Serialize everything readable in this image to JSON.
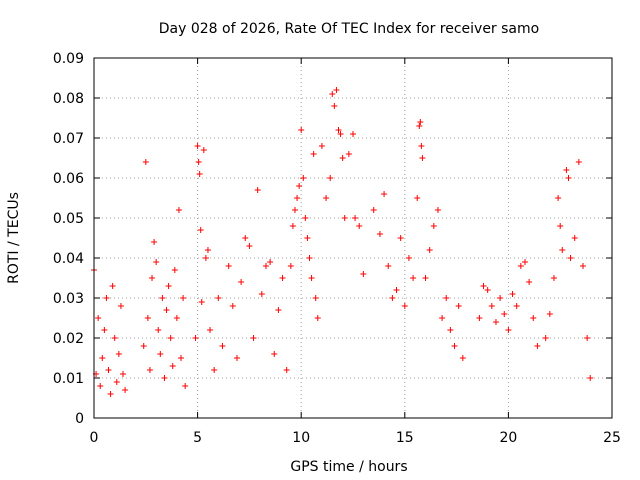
{
  "chart_data": {
    "type": "scatter",
    "title": "Day 028 of 2026, Rate Of TEC Index for receiver samo",
    "xlabel": "GPS time / hours",
    "ylabel": "ROTI / TECUs",
    "xlim": [
      0,
      25
    ],
    "ylim": [
      0,
      0.09
    ],
    "x_ticks": [
      0,
      5,
      10,
      15,
      20,
      25
    ],
    "x_tick_labels": [
      "0",
      "5",
      "10",
      "15",
      "20",
      "25"
    ],
    "y_ticks": [
      0,
      0.01,
      0.02,
      0.03,
      0.04,
      0.05,
      0.06,
      0.07,
      0.08,
      0.09
    ],
    "y_tick_labels": [
      "0",
      "0.01",
      "0.02",
      "0.03",
      "0.04",
      "0.05",
      "0.06",
      "0.07",
      "0.08",
      "0.09"
    ],
    "grid": true,
    "marker": "plus",
    "color": "#ff0000",
    "series": [
      {
        "values": [
          [
            0.0,
            0.037
          ],
          [
            0.1,
            0.011
          ],
          [
            0.2,
            0.025
          ],
          [
            0.3,
            0.008
          ],
          [
            0.4,
            0.015
          ],
          [
            0.5,
            0.022
          ],
          [
            0.6,
            0.03
          ],
          [
            0.7,
            0.012
          ],
          [
            0.8,
            0.006
          ],
          [
            0.9,
            0.033
          ],
          [
            1.0,
            0.02
          ],
          [
            1.1,
            0.009
          ],
          [
            1.2,
            0.016
          ],
          [
            1.3,
            0.028
          ],
          [
            1.4,
            0.011
          ],
          [
            1.5,
            0.007
          ],
          [
            2.4,
            0.018
          ],
          [
            2.5,
            0.064
          ],
          [
            2.6,
            0.025
          ],
          [
            2.7,
            0.012
          ],
          [
            2.8,
            0.035
          ],
          [
            2.9,
            0.044
          ],
          [
            3.0,
            0.039
          ],
          [
            3.1,
            0.022
          ],
          [
            3.2,
            0.016
          ],
          [
            3.3,
            0.03
          ],
          [
            3.4,
            0.01
          ],
          [
            3.5,
            0.027
          ],
          [
            3.6,
            0.033
          ],
          [
            3.7,
            0.02
          ],
          [
            3.8,
            0.013
          ],
          [
            3.9,
            0.037
          ],
          [
            4.0,
            0.025
          ],
          [
            4.1,
            0.052
          ],
          [
            4.2,
            0.015
          ],
          [
            4.3,
            0.03
          ],
          [
            4.4,
            0.008
          ],
          [
            4.9,
            0.02
          ],
          [
            5.0,
            0.068
          ],
          [
            5.05,
            0.064
          ],
          [
            5.1,
            0.061
          ],
          [
            5.15,
            0.047
          ],
          [
            5.2,
            0.029
          ],
          [
            5.3,
            0.067
          ],
          [
            5.4,
            0.04
          ],
          [
            5.5,
            0.042
          ],
          [
            5.6,
            0.022
          ],
          [
            5.8,
            0.012
          ],
          [
            6.0,
            0.03
          ],
          [
            6.2,
            0.018
          ],
          [
            6.5,
            0.038
          ],
          [
            6.7,
            0.028
          ],
          [
            6.9,
            0.015
          ],
          [
            7.1,
            0.034
          ],
          [
            7.3,
            0.045
          ],
          [
            7.5,
            0.043
          ],
          [
            7.7,
            0.02
          ],
          [
            7.9,
            0.057
          ],
          [
            8.1,
            0.031
          ],
          [
            8.3,
            0.038
          ],
          [
            8.5,
            0.039
          ],
          [
            8.7,
            0.016
          ],
          [
            8.9,
            0.027
          ],
          [
            9.1,
            0.035
          ],
          [
            9.3,
            0.012
          ],
          [
            9.5,
            0.038
          ],
          [
            9.6,
            0.048
          ],
          [
            9.7,
            0.052
          ],
          [
            9.8,
            0.055
          ],
          [
            9.9,
            0.058
          ],
          [
            10.0,
            0.072
          ],
          [
            10.1,
            0.06
          ],
          [
            10.2,
            0.05
          ],
          [
            10.3,
            0.045
          ],
          [
            10.4,
            0.04
          ],
          [
            10.5,
            0.035
          ],
          [
            10.6,
            0.066
          ],
          [
            10.7,
            0.03
          ],
          [
            10.8,
            0.025
          ],
          [
            11.0,
            0.068
          ],
          [
            11.2,
            0.055
          ],
          [
            11.4,
            0.06
          ],
          [
            11.5,
            0.081
          ],
          [
            11.6,
            0.078
          ],
          [
            11.7,
            0.082
          ],
          [
            11.8,
            0.072
          ],
          [
            11.9,
            0.071
          ],
          [
            12.0,
            0.065
          ],
          [
            12.1,
            0.05
          ],
          [
            12.3,
            0.066
          ],
          [
            12.5,
            0.071
          ],
          [
            12.6,
            0.05
          ],
          [
            12.8,
            0.048
          ],
          [
            13.0,
            0.036
          ],
          [
            13.5,
            0.052
          ],
          [
            13.8,
            0.046
          ],
          [
            14.0,
            0.056
          ],
          [
            14.2,
            0.038
          ],
          [
            14.4,
            0.03
          ],
          [
            14.6,
            0.032
          ],
          [
            14.8,
            0.045
          ],
          [
            15.0,
            0.028
          ],
          [
            15.2,
            0.04
          ],
          [
            15.4,
            0.035
          ],
          [
            15.6,
            0.055
          ],
          [
            15.7,
            0.073
          ],
          [
            15.75,
            0.074
          ],
          [
            15.8,
            0.068
          ],
          [
            15.85,
            0.065
          ],
          [
            16.0,
            0.035
          ],
          [
            16.2,
            0.042
          ],
          [
            16.4,
            0.048
          ],
          [
            16.6,
            0.052
          ],
          [
            16.8,
            0.025
          ],
          [
            17.0,
            0.03
          ],
          [
            17.2,
            0.022
          ],
          [
            17.4,
            0.018
          ],
          [
            17.6,
            0.028
          ],
          [
            17.8,
            0.015
          ],
          [
            18.6,
            0.025
          ],
          [
            18.8,
            0.033
          ],
          [
            19.0,
            0.032
          ],
          [
            19.2,
            0.028
          ],
          [
            19.4,
            0.024
          ],
          [
            19.6,
            0.03
          ],
          [
            19.8,
            0.026
          ],
          [
            20.0,
            0.022
          ],
          [
            20.2,
            0.031
          ],
          [
            20.4,
            0.028
          ],
          [
            20.6,
            0.038
          ],
          [
            20.8,
            0.039
          ],
          [
            21.0,
            0.034
          ],
          [
            21.2,
            0.025
          ],
          [
            21.4,
            0.018
          ],
          [
            21.8,
            0.02
          ],
          [
            22.0,
            0.026
          ],
          [
            22.2,
            0.035
          ],
          [
            22.4,
            0.055
          ],
          [
            22.5,
            0.048
          ],
          [
            22.6,
            0.042
          ],
          [
            22.8,
            0.062
          ],
          [
            22.9,
            0.06
          ],
          [
            23.0,
            0.04
          ],
          [
            23.2,
            0.045
          ],
          [
            23.4,
            0.064
          ],
          [
            23.6,
            0.038
          ],
          [
            23.8,
            0.02
          ],
          [
            23.95,
            0.01
          ]
        ]
      }
    ]
  }
}
